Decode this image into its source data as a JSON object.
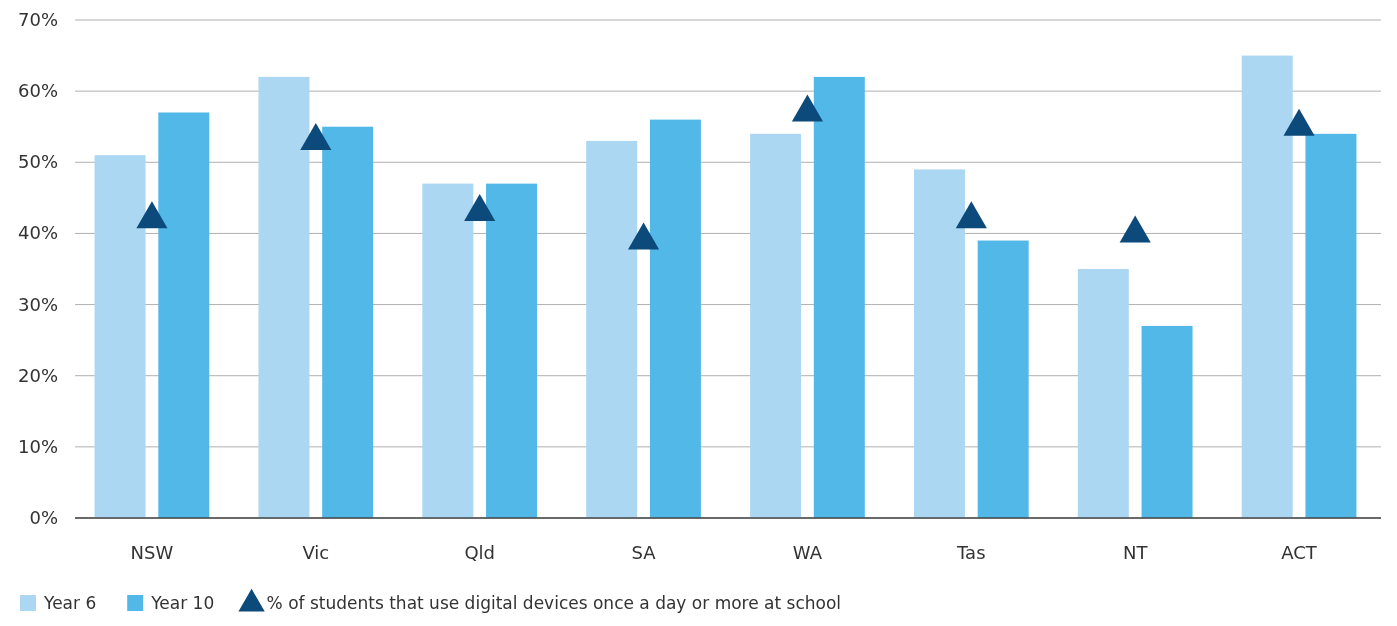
{
  "chart_data": {
    "type": "bar",
    "categories": [
      "NSW",
      "Vic",
      "Qld",
      "SA",
      "WA",
      "Tas",
      "NT",
      "ACT"
    ],
    "series": [
      {
        "name": "Year 6",
        "color": "#acd7f2",
        "values": [
          51,
          62,
          47,
          53,
          54,
          49,
          35,
          65
        ]
      },
      {
        "name": "Year 10",
        "color": "#52b8e8",
        "values": [
          57,
          55,
          47,
          56,
          62,
          39,
          27,
          54
        ]
      },
      {
        "name": "% of students that use digital devices once a day or more at school",
        "type": "scatter",
        "color": "#0b4a7a",
        "marker": "triangle",
        "x": [
          "NSW",
          "Vic",
          "Qld",
          "SA",
          "WA",
          "Tas",
          "NT",
          "ACT"
        ],
        "values": [
          42,
          53,
          43,
          39,
          57,
          42,
          40,
          55
        ]
      }
    ],
    "ylim": [
      0,
      70
    ],
    "yticks": [
      {
        "value": 0,
        "label": "0%"
      },
      {
        "value": 10,
        "label": "10%"
      },
      {
        "value": 20,
        "label": "20%"
      },
      {
        "value": 30,
        "label": "30%"
      },
      {
        "value": 40,
        "label": "40%"
      },
      {
        "value": 50,
        "label": "50%"
      },
      {
        "value": 60,
        "label": "60%"
      },
      {
        "value": 70,
        "label": "70%"
      }
    ],
    "grid": "y",
    "legend": "bottom left"
  }
}
